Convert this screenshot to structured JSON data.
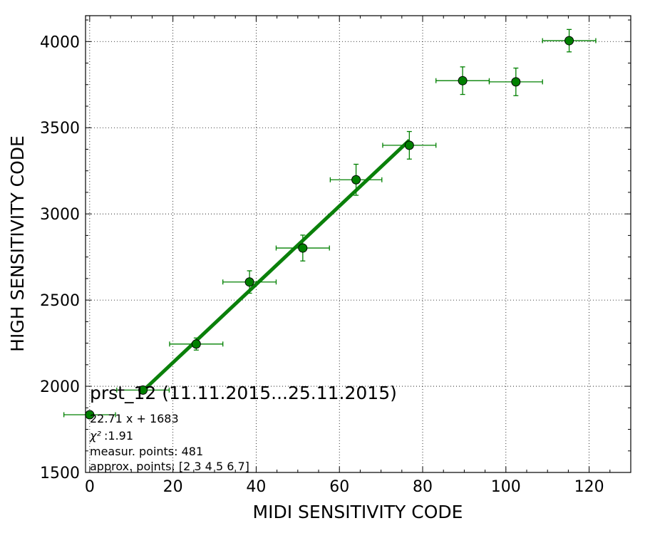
{
  "chart_data": {
    "type": "scatter",
    "title": "prst_12 (11.11.2015...25.11.2015)",
    "xlabel": "MIDI SENSITIVITY CODE",
    "ylabel": "HIGH SENSITIVITY CODE",
    "xlim": [
      -1,
      130
    ],
    "ylim": [
      1500,
      4150
    ],
    "x_ticks": [
      0,
      20,
      40,
      60,
      80,
      100,
      120
    ],
    "y_ticks": [
      1500,
      2000,
      2500,
      3000,
      3500,
      4000
    ],
    "x_tick_labels": [
      "0",
      "20",
      "40",
      "60",
      "80",
      "100",
      "120"
    ],
    "y_tick_labels": [
      "1500",
      "2000",
      "2500",
      "3000",
      "3500",
      "4000"
    ],
    "grid": true,
    "marker_color": "#008000",
    "fit_line_color": "#0a800a",
    "points": [
      {
        "x": 0.0,
        "y": 1835,
        "xerr": 6.2,
        "yerr": 0
      },
      {
        "x": 12.8,
        "y": 1978,
        "xerr": 6.3,
        "yerr": 15
      },
      {
        "x": 25.6,
        "y": 2245,
        "xerr": 6.4,
        "yerr": 35
      },
      {
        "x": 38.4,
        "y": 2605,
        "xerr": 6.4,
        "yerr": 65
      },
      {
        "x": 51.2,
        "y": 2802,
        "xerr": 6.4,
        "yerr": 75
      },
      {
        "x": 64.0,
        "y": 3198,
        "xerr": 6.2,
        "yerr": 90
      },
      {
        "x": 76.8,
        "y": 3398,
        "xerr": 6.4,
        "yerr": 80
      },
      {
        "x": 89.6,
        "y": 3773,
        "xerr": 6.4,
        "yerr": 80
      },
      {
        "x": 102.4,
        "y": 3766,
        "xerr": 6.4,
        "yerr": 80
      },
      {
        "x": 115.2,
        "y": 4005,
        "xerr": 6.4,
        "yerr": 65
      }
    ],
    "fit": {
      "slope": 22.71,
      "intercept": 1683,
      "x_range": [
        12.8,
        76.8
      ]
    },
    "fit_text": "22.71 x + 1683",
    "chi2_label": "χ²",
    "chi2_value": " :1.91",
    "measur_points_text": "measur. points: 481",
    "approx_points_text": "approx. points: [2 3 4 5 6 7]"
  }
}
